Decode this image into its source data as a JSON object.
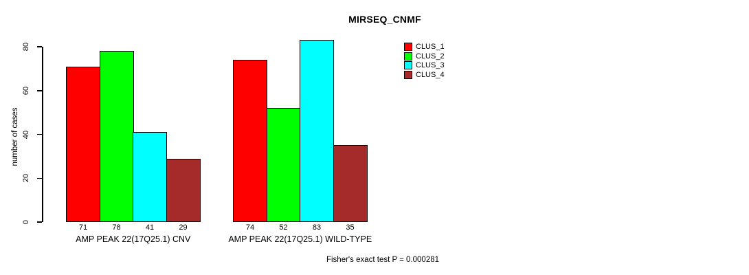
{
  "title": "MIRSEQ_CNMF",
  "chart_data": {
    "type": "bar",
    "title": "MIRSEQ_CNMF",
    "xlabel": "",
    "ylabel": "number of cases",
    "ylim": [
      0,
      80
    ],
    "yticks": [
      0,
      20,
      40,
      60,
      80
    ],
    "grid": false,
    "legend_position": "right",
    "bar_value_labels": true,
    "categories": [
      "AMP PEAK 22(17Q25.1) CNV",
      "AMP PEAK 22(17Q25.1) WILD-TYPE"
    ],
    "series": [
      {
        "name": "CLUS_1",
        "color": "#ff0000",
        "values": [
          71,
          74
        ]
      },
      {
        "name": "CLUS_2",
        "color": "#00ff00",
        "values": [
          78,
          52
        ]
      },
      {
        "name": "CLUS_3",
        "color": "#00ffff",
        "values": [
          41,
          83
        ]
      },
      {
        "name": "CLUS_4",
        "color": "#a52a2a",
        "values": [
          29,
          35
        ]
      }
    ],
    "annotation": "Fisher's exact test P = 0.000281"
  },
  "legend": {
    "items": [
      {
        "label": "CLUS_1",
        "color": "#ff0000"
      },
      {
        "label": "CLUS_2",
        "color": "#00ff00"
      },
      {
        "label": "CLUS_3",
        "color": "#00ffff"
      },
      {
        "label": "CLUS_4",
        "color": "#a52a2a"
      }
    ]
  },
  "footer": {
    "text": "Fisher's exact test P = 0.000281"
  },
  "colors": {
    "background": "#ffffff",
    "axis": "#000000",
    "text": "#000000"
  }
}
